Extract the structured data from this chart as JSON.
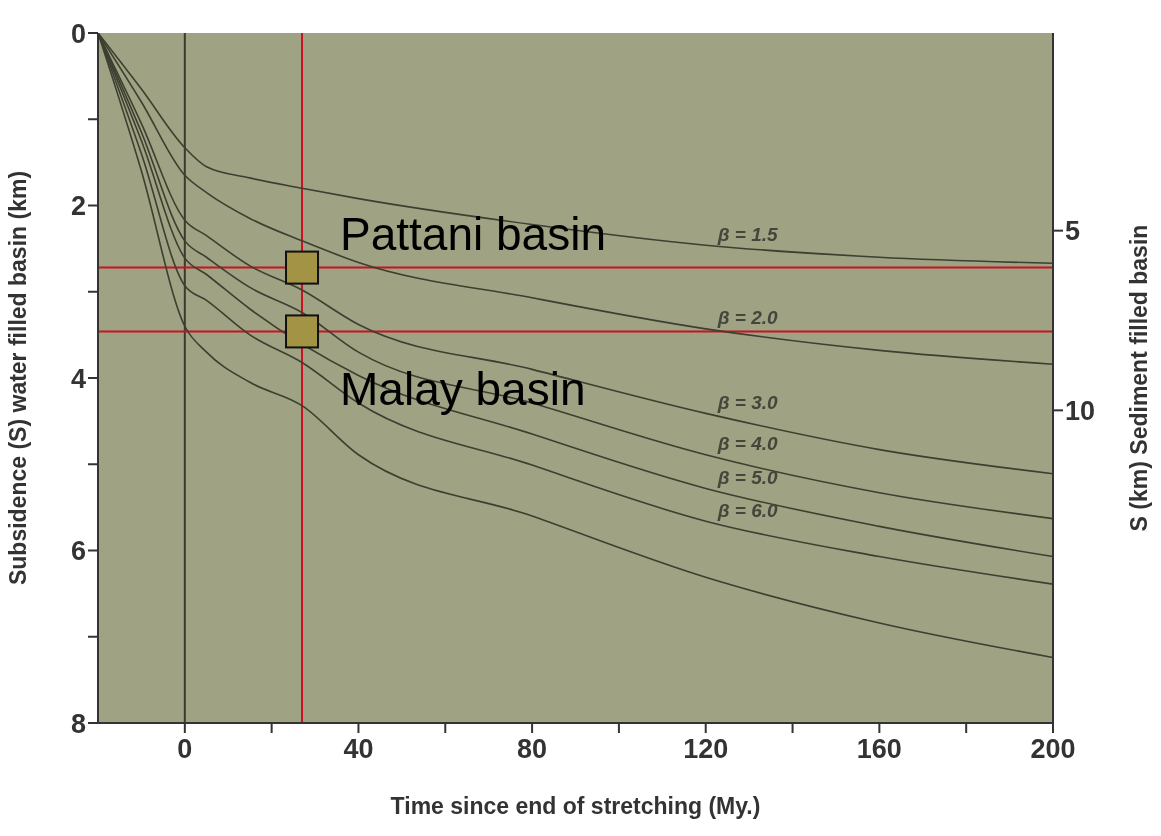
{
  "chart_data": {
    "type": "line",
    "xlabel": "Time since end of stretching (My.)",
    "ylabel": "Subsidence (S) water filled basin (km)",
    "y2label": "S (km) Sediment filled basin",
    "xlim": [
      -20,
      200
    ],
    "xticks": [
      0,
      {
        "value": 20,
        "label": null
      },
      40,
      {
        "value": 60,
        "label": null
      },
      80,
      {
        "value": 100,
        "label": null
      },
      120,
      {
        "value": 140,
        "label": null
      },
      160,
      {
        "value": 180,
        "label": null
      },
      200
    ],
    "ylim": [
      8,
      0
    ],
    "yticks": [
      0,
      {
        "value": 1,
        "label": null
      },
      2,
      {
        "value": 3,
        "label": null
      },
      4,
      {
        "value": 5,
        "label": null
      },
      6,
      {
        "value": 7,
        "label": null
      },
      8
    ],
    "y2lim": [
      18.7,
      -0.5
    ],
    "y2ticks": [
      5,
      10
    ],
    "marker": "none",
    "line_style": "solid",
    "series": [
      {
        "name": "β = 1.5",
        "color": "#3d3f30",
        "x": [
          -20,
          -10,
          0,
          5,
          15,
          27,
          40,
          80,
          120,
          160,
          200
        ],
        "values": [
          0,
          0.65,
          1.33,
          1.55,
          1.68,
          1.8,
          1.92,
          2.22,
          2.46,
          2.6,
          2.67
        ]
      },
      {
        "name": "β = 2.0",
        "color": "#3d3f30",
        "x": [
          -20,
          -10,
          0,
          5,
          15,
          27,
          40,
          80,
          120,
          160,
          200
        ],
        "values": [
          0,
          0.8,
          1.65,
          1.85,
          2.15,
          2.41,
          2.66,
          3.07,
          3.43,
          3.68,
          3.84
        ]
      },
      {
        "name": "β = 3.0",
        "color": "#3d3f30",
        "x": [
          -20,
          -10,
          0,
          5,
          15,
          27,
          40,
          80,
          120,
          160,
          200
        ],
        "values": [
          0,
          1.05,
          2.17,
          2.35,
          2.7,
          2.98,
          3.38,
          3.9,
          4.41,
          4.83,
          5.11
        ]
      },
      {
        "name": "β = 4.0",
        "color": "#3d3f30",
        "x": [
          -20,
          -10,
          0,
          5,
          15,
          27,
          40,
          80,
          120,
          160,
          200
        ],
        "values": [
          0,
          1.15,
          2.41,
          2.6,
          2.95,
          3.24,
          3.7,
          4.29,
          4.89,
          5.33,
          5.63
        ]
      },
      {
        "name": "β = 5.0",
        "color": "#3d3f30",
        "x": [
          -20,
          -10,
          0,
          5,
          15,
          40,
          80,
          120,
          160,
          200
        ],
        "values": [
          0,
          1.25,
          2.61,
          2.8,
          3.2,
          3.97,
          4.65,
          5.28,
          5.72,
          6.07
        ]
      },
      {
        "name": "β = 6.0",
        "color": "#3d3f30",
        "x": [
          -20,
          -10,
          0,
          5,
          15,
          27,
          40,
          80,
          120,
          160,
          200
        ],
        "values": [
          0,
          1.4,
          2.93,
          3.1,
          3.5,
          3.82,
          4.29,
          5.01,
          5.66,
          6.07,
          6.39
        ]
      },
      {
        "color": "#3d3f30",
        "x": [
          -20,
          -10,
          0,
          5,
          15,
          27,
          40,
          80,
          120,
          160,
          200
        ],
        "values": [
          0,
          1.6,
          3.4,
          3.7,
          4.05,
          4.32,
          4.89,
          5.6,
          6.31,
          6.84,
          7.24
        ]
      },
      {
        "type": "scatter",
        "name": "Pattani basin",
        "marker": "square",
        "color": "#a39445",
        "x": [
          27
        ],
        "values": [
          2.72
        ]
      },
      {
        "type": "scatter",
        "name": "Malay basin",
        "marker": "square",
        "color": "#a39445",
        "x": [
          27
        ],
        "values": [
          3.46
        ]
      }
    ],
    "ref_lines": [
      {
        "axis": "x",
        "value": 0,
        "color": "#3b3b2e"
      },
      {
        "axis": "x",
        "value": 27,
        "color": "#cc1122"
      },
      {
        "axis": "y",
        "value": 2.72,
        "color": "#cc1122"
      },
      {
        "axis": "y",
        "value": 3.46,
        "color": "#cc1122"
      }
    ]
  }
}
